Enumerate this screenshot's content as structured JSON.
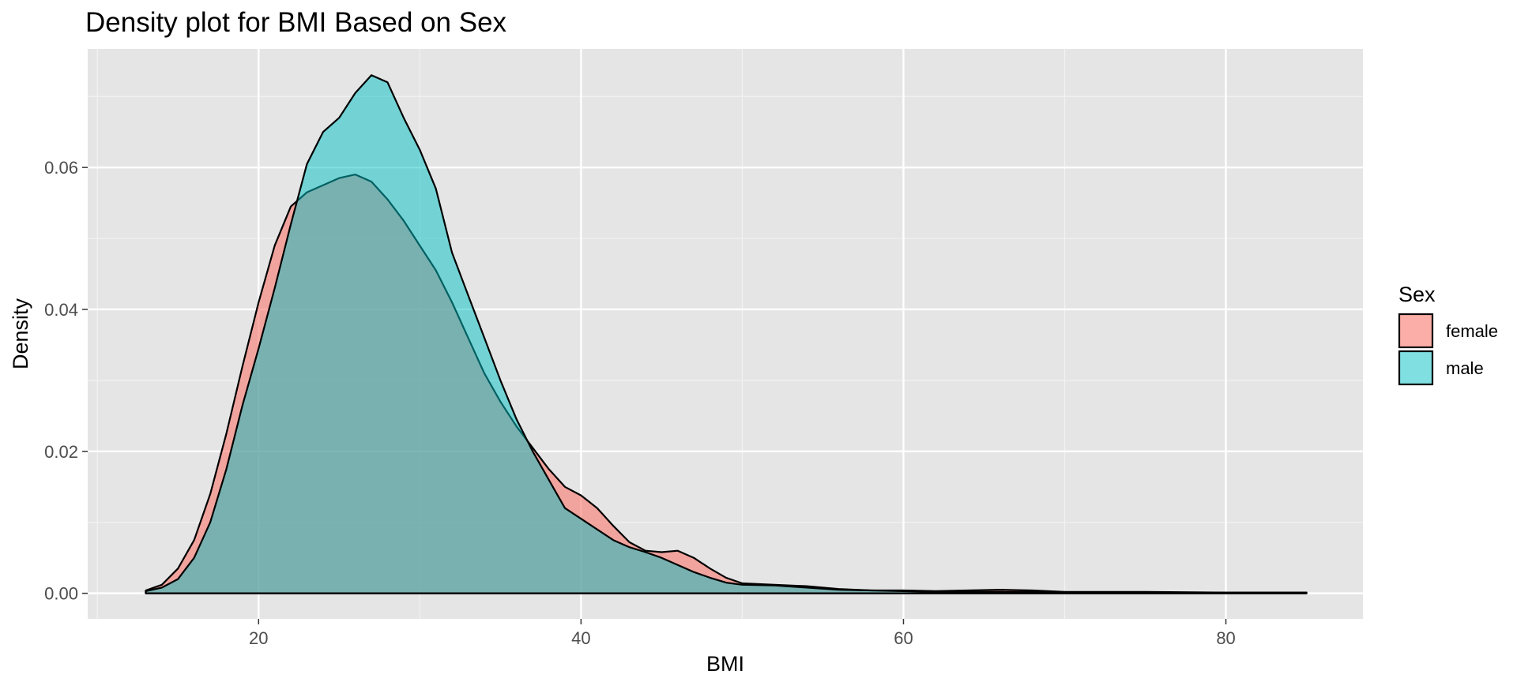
{
  "chart_data": {
    "type": "area",
    "title": "Density plot for BMI Based on Sex",
    "xlabel": "BMI",
    "ylabel": "Density",
    "xlim": [
      9.4,
      88.5
    ],
    "ylim": [
      -0.0036,
      0.0767
    ],
    "x_ticks": [
      20,
      40,
      60,
      80
    ],
    "x_tick_labels": [
      "20",
      "40",
      "60",
      "80"
    ],
    "y_ticks": [
      0.0,
      0.02,
      0.04,
      0.06
    ],
    "y_tick_labels": [
      "0.00",
      "0.02",
      "0.04",
      "0.06"
    ],
    "grid": true,
    "legend": {
      "title": "Sex",
      "position": "right"
    },
    "series": [
      {
        "name": "female",
        "color": "#F8766D",
        "fill_opacity": 0.6,
        "x": [
          13,
          14,
          15,
          16,
          17,
          18,
          19,
          20,
          21,
          22,
          23,
          24,
          25,
          26,
          27,
          28,
          29,
          30,
          31,
          32,
          33,
          34,
          35,
          36,
          37,
          38,
          39,
          40,
          41,
          42,
          43,
          44,
          45,
          46,
          47,
          48,
          49,
          50,
          52,
          54,
          56,
          58,
          60,
          62,
          64,
          66,
          68,
          70,
          75,
          80,
          85
        ],
        "values": [
          0.0004,
          0.0012,
          0.0035,
          0.0075,
          0.014,
          0.0225,
          0.032,
          0.041,
          0.049,
          0.0545,
          0.0565,
          0.0575,
          0.0585,
          0.059,
          0.058,
          0.0555,
          0.0525,
          0.049,
          0.0455,
          0.041,
          0.036,
          0.031,
          0.027,
          0.0235,
          0.0205,
          0.0175,
          0.015,
          0.0138,
          0.012,
          0.0095,
          0.0072,
          0.006,
          0.0058,
          0.006,
          0.005,
          0.0035,
          0.0022,
          0.0014,
          0.0012,
          0.001,
          0.0006,
          0.0004,
          0.0004,
          0.0003,
          0.0004,
          0.0005,
          0.0004,
          0.0002,
          0.0002,
          0.0001,
          0.0001
        ]
      },
      {
        "name": "male",
        "color": "#00BFC4",
        "fill_opacity": 0.5,
        "x": [
          13,
          14,
          15,
          16,
          17,
          18,
          19,
          20,
          21,
          22,
          23,
          24,
          25,
          26,
          27,
          28,
          29,
          30,
          31,
          32,
          33,
          34,
          35,
          36,
          37,
          38,
          39,
          40,
          41,
          42,
          43,
          44,
          45,
          46,
          47,
          48,
          49,
          50,
          52,
          54,
          56,
          58,
          60,
          62,
          64,
          66,
          68,
          70,
          75,
          80,
          85
        ],
        "values": [
          0.0003,
          0.0008,
          0.002,
          0.005,
          0.01,
          0.0175,
          0.0265,
          0.0345,
          0.043,
          0.052,
          0.0605,
          0.065,
          0.067,
          0.0705,
          0.073,
          0.072,
          0.067,
          0.0625,
          0.057,
          0.048,
          0.042,
          0.036,
          0.03,
          0.0245,
          0.02,
          0.016,
          0.012,
          0.0105,
          0.009,
          0.0075,
          0.0065,
          0.0058,
          0.005,
          0.004,
          0.003,
          0.0022,
          0.0015,
          0.0012,
          0.0011,
          0.0008,
          0.0005,
          0.0004,
          0.0003,
          0.0002,
          0.0002,
          0.0002,
          0.0002,
          0.0001,
          0.0001,
          0.0001,
          0.0001
        ]
      }
    ]
  }
}
